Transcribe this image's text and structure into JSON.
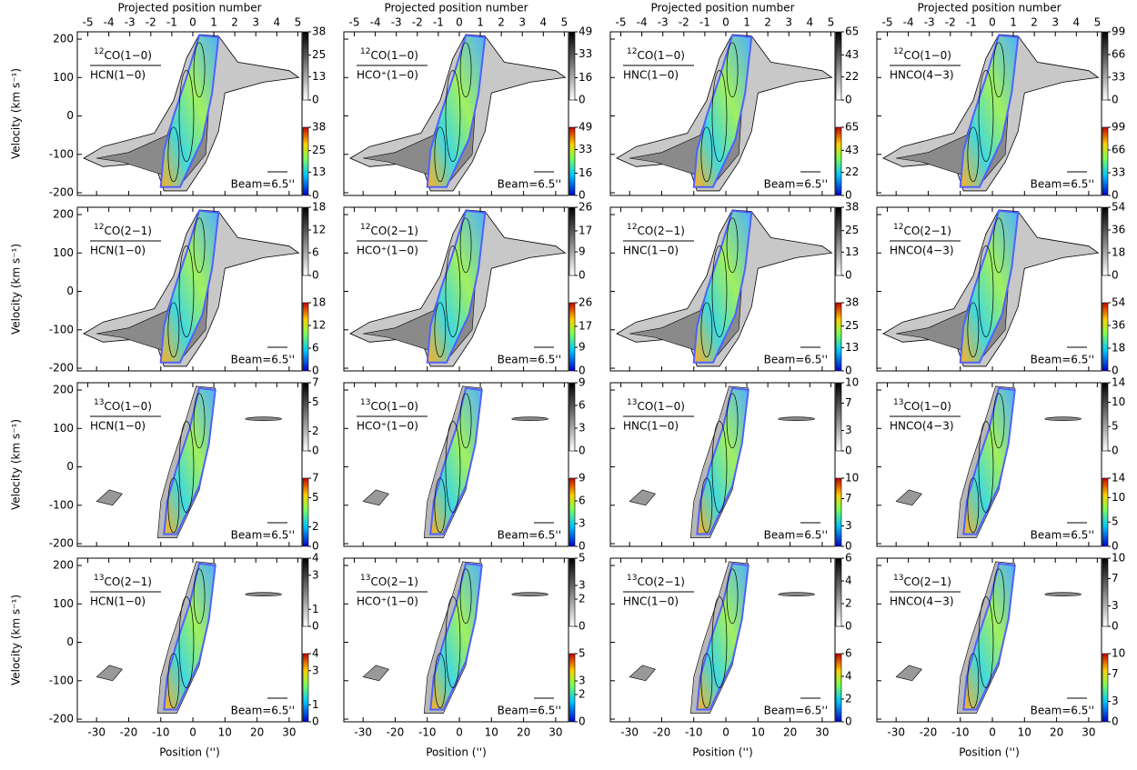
{
  "chart_data": {
    "type": "pv-grid",
    "top_label": "Projected position number",
    "xlabel": "Position ('')",
    "ylabel": "Velocity (km s⁻¹)",
    "beam_label": "Beam=6.5''",
    "xlim": [
      -36,
      34
    ],
    "xticks": [
      -30,
      -20,
      -10,
      0,
      10,
      20,
      30
    ],
    "top_xlim": [
      -5.5,
      5.2
    ],
    "top_xticks": [
      -5,
      -4,
      -3,
      -2,
      -1,
      0,
      1,
      2,
      3,
      4,
      5
    ],
    "ylim": [
      -207,
      219
    ],
    "yticks": [
      -200,
      -100,
      0,
      100,
      200
    ],
    "panels": [
      {
        "iso": "12",
        "num": "CO(1−0)",
        "den": "HCN(1−0)",
        "clim": [
          0,
          38
        ],
        "cticks": [
          0,
          13,
          25,
          38
        ]
      },
      {
        "iso": "12",
        "num": "CO(1−0)",
        "den": "HCO⁺(1−0)",
        "clim": [
          0,
          49
        ],
        "cticks": [
          0,
          16,
          33,
          49
        ]
      },
      {
        "iso": "12",
        "num": "CO(1−0)",
        "den": "HNC(1−0)",
        "clim": [
          0,
          65
        ],
        "cticks": [
          0,
          22,
          43,
          65
        ]
      },
      {
        "iso": "12",
        "num": "CO(1−0)",
        "den": "HNCO(4−3)",
        "clim": [
          0,
          99
        ],
        "cticks": [
          0,
          33,
          66,
          99
        ]
      },
      {
        "iso": "12",
        "num": "CO(2−1)",
        "den": "HCN(1−0)",
        "clim": [
          0,
          18
        ],
        "cticks": [
          0,
          6,
          12,
          18
        ]
      },
      {
        "iso": "12",
        "num": "CO(2−1)",
        "den": "HCO⁺(1−0)",
        "clim": [
          0,
          26
        ],
        "cticks": [
          0,
          9,
          17,
          26
        ]
      },
      {
        "iso": "12",
        "num": "CO(2−1)",
        "den": "HNC(1−0)",
        "clim": [
          0,
          38
        ],
        "cticks": [
          0,
          13,
          25,
          38
        ]
      },
      {
        "iso": "12",
        "num": "CO(2−1)",
        "den": "HNCO(4−3)",
        "clim": [
          0,
          54
        ],
        "cticks": [
          0,
          18,
          36,
          54
        ]
      },
      {
        "iso": "13",
        "num": "CO(1−0)",
        "den": "HCN(1−0)",
        "clim": [
          0,
          7
        ],
        "cticks": [
          0,
          2,
          5,
          7
        ]
      },
      {
        "iso": "13",
        "num": "CO(1−0)",
        "den": "HCO⁺(1−0)",
        "clim": [
          0,
          9
        ],
        "cticks": [
          0,
          3,
          6,
          9
        ]
      },
      {
        "iso": "13",
        "num": "CO(1−0)",
        "den": "HNC(1−0)",
        "clim": [
          0,
          10
        ],
        "cticks": [
          0,
          3,
          7,
          10
        ]
      },
      {
        "iso": "13",
        "num": "CO(1−0)",
        "den": "HNCO(4−3)",
        "clim": [
          0,
          14
        ],
        "cticks": [
          0,
          5,
          10,
          14
        ]
      },
      {
        "iso": "13",
        "num": "CO(2−1)",
        "den": "HCN(1−0)",
        "clim": [
          0,
          4
        ],
        "cticks": [
          0,
          1,
          3,
          4
        ]
      },
      {
        "iso": "13",
        "num": "CO(2−1)",
        "den": "HCO⁺(1−0)",
        "clim": [
          0,
          5
        ],
        "cticks": [
          0,
          2,
          3,
          5
        ]
      },
      {
        "iso": "13",
        "num": "CO(2−1)",
        "den": "HNC(1−0)",
        "clim": [
          0,
          6
        ],
        "cticks": [
          0,
          2,
          4,
          6
        ]
      },
      {
        "iso": "13",
        "num": "CO(2−1)",
        "den": "HNCO(4−3)",
        "clim": [
          0,
          10
        ],
        "cticks": [
          0,
          3,
          7,
          10
        ]
      }
    ]
  }
}
